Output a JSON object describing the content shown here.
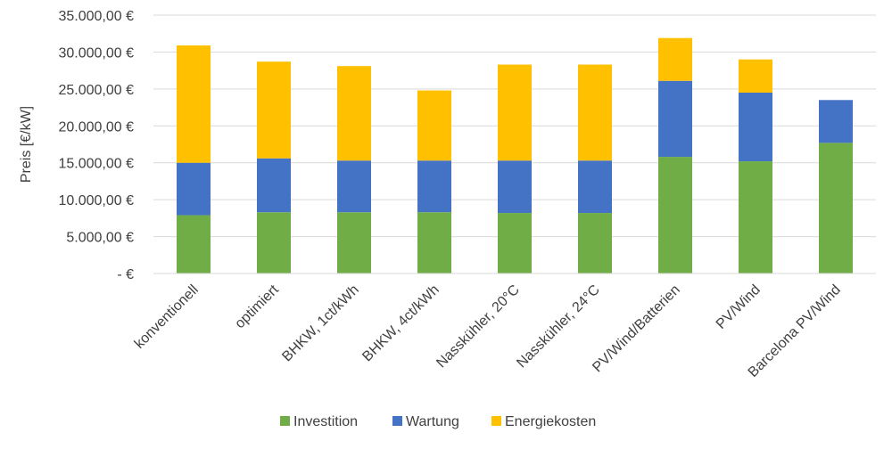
{
  "chart_data": {
    "type": "bar",
    "stacked": true,
    "ylabel": "Preis [€/kW]",
    "ylim": [
      0,
      35000
    ],
    "y_tick_values": [
      0,
      5000,
      10000,
      15000,
      20000,
      25000,
      30000,
      35000
    ],
    "y_tick_labels": [
      "-   €",
      "5.000,00 €",
      "10.000,00 €",
      "15.000,00 €",
      "20.000,00 €",
      "25.000,00 €",
      "30.000,00 €",
      "35.000,00 €"
    ],
    "grid": true,
    "legend_position": "bottom",
    "categories": [
      "konventionell",
      "optimiert",
      "BHKW, 1ct/kWh",
      "BHKW, 4ct/kWh",
      "Nasskühler, 20°C",
      "Nasskühler, 24°C",
      "PV/Wind/Batterien",
      "PV/Wind",
      "Barcelona PV/Wind"
    ],
    "series": [
      {
        "name": "Investition",
        "color": "#70ad47",
        "values": [
          7900,
          8300,
          8300,
          8300,
          8200,
          8200,
          15800,
          15200,
          17700
        ]
      },
      {
        "name": "Wartung",
        "color": "#4472c4",
        "values": [
          7100,
          7300,
          7000,
          7000,
          7100,
          7100,
          10300,
          9300,
          5800
        ]
      },
      {
        "name": "Energiekosten",
        "color": "#ffc000",
        "values": [
          15900,
          13100,
          12800,
          9500,
          13000,
          13000,
          5800,
          4500,
          0
        ]
      }
    ]
  }
}
